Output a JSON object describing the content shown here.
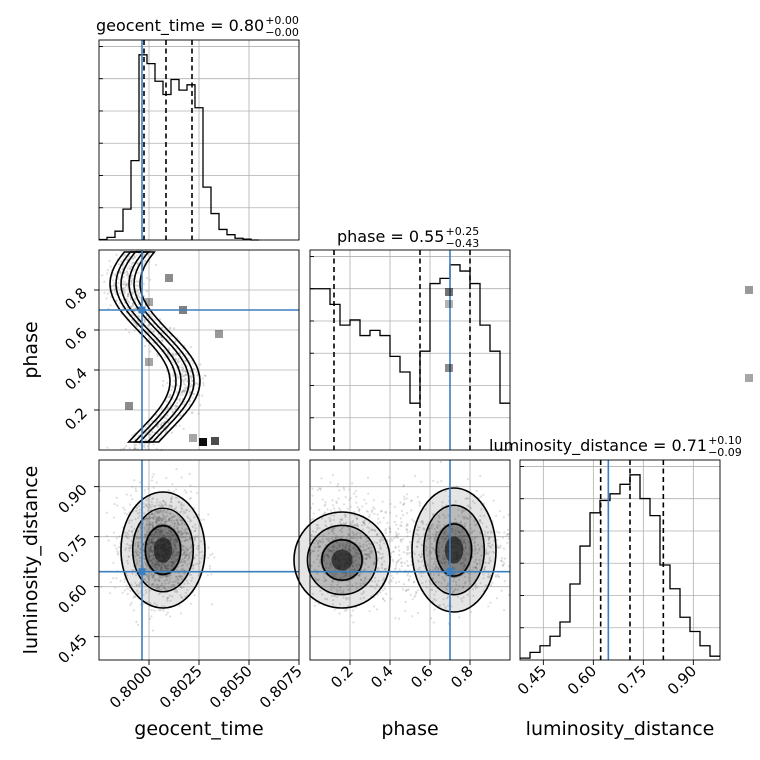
{
  "chart_data": {
    "type": "corner",
    "parameters": [
      "geocent_time",
      "phase",
      "luminosity_distance"
    ],
    "truths": {
      "geocent_time": 0.79965,
      "phase": 0.7,
      "luminosity_distance": 0.645
    },
    "titles": [
      {
        "name": "geocent_time",
        "text": "geocent_time = 0.80",
        "sup": "+0.00",
        "sub": "−0.00"
      },
      {
        "name": "phase",
        "text": "phase = 0.55",
        "sup": "+0.25",
        "sub": "−0.43"
      },
      {
        "name": "luminosity_distance",
        "text": "luminosity_distance = 0.71",
        "sup": "+0.10",
        "sub": "−0.09"
      }
    ],
    "axes": {
      "geocent_time": {
        "range": [
          0.7975,
          0.8075
        ],
        "ticks": [
          0.8,
          0.8025,
          0.805,
          0.8075
        ],
        "tick_labels": [
          "0.8000",
          "0.8025",
          "0.8050",
          "0.8075"
        ],
        "label": "geocent_time"
      },
      "phase": {
        "range": [
          0.0,
          1.0
        ],
        "ticks": [
          0.2,
          0.4,
          0.6,
          0.8
        ],
        "tick_labels": [
          "0.2",
          "0.4",
          "0.6",
          "0.8"
        ],
        "label": "phase"
      },
      "luminosity_distance": {
        "range": [
          0.38,
          0.98
        ],
        "ticks": [
          0.45,
          0.6,
          0.75,
          0.9
        ],
        "tick_labels": [
          "0.45",
          "0.60",
          "0.75",
          "0.90"
        ],
        "label": "luminosity_distance"
      }
    },
    "histograms": {
      "geocent_time": {
        "quantiles": [
          0.79975,
          0.80085,
          0.80215
        ],
        "edges": [
          0.7975,
          0.7979,
          0.7983,
          0.7987,
          0.7991,
          0.7995,
          0.7999,
          0.8003,
          0.8007,
          0.8011,
          0.8015,
          0.8019,
          0.8023,
          0.8027,
          0.8031,
          0.8035,
          0.8039,
          0.8043,
          0.8047,
          0.8051,
          0.8055
        ],
        "counts": [
          0.5,
          3,
          10,
          35,
          90,
          210,
          200,
          180,
          165,
          182,
          170,
          176,
          150,
          60,
          30,
          12,
          6,
          2,
          1,
          0
        ]
      },
      "phase": {
        "quantiles": [
          0.12,
          0.55,
          0.8
        ],
        "edges": [
          0.0,
          0.05,
          0.1,
          0.15,
          0.2,
          0.25,
          0.3,
          0.35,
          0.4,
          0.45,
          0.5,
          0.55,
          0.6,
          0.65,
          0.7,
          0.75,
          0.8,
          0.85,
          0.9,
          0.95,
          1.0
        ],
        "counts": [
          155,
          155,
          140,
          120,
          125,
          110,
          115,
          110,
          90,
          75,
          45,
          95,
          160,
          165,
          178,
          172,
          160,
          120,
          95,
          45
        ]
      },
      "luminosity_distance": {
        "quantiles": [
          0.622,
          0.71,
          0.81
        ],
        "edges": [
          0.38,
          0.41,
          0.44,
          0.47,
          0.5,
          0.53,
          0.56,
          0.59,
          0.62,
          0.65,
          0.68,
          0.71,
          0.74,
          0.77,
          0.8,
          0.83,
          0.86,
          0.89,
          0.92,
          0.95,
          0.98
        ],
        "counts": [
          2,
          8,
          15,
          25,
          40,
          80,
          120,
          155,
          168,
          175,
          185,
          195,
          170,
          152,
          100,
          75,
          45,
          30,
          15,
          4
        ]
      }
    },
    "legend": "none",
    "grid": true
  }
}
